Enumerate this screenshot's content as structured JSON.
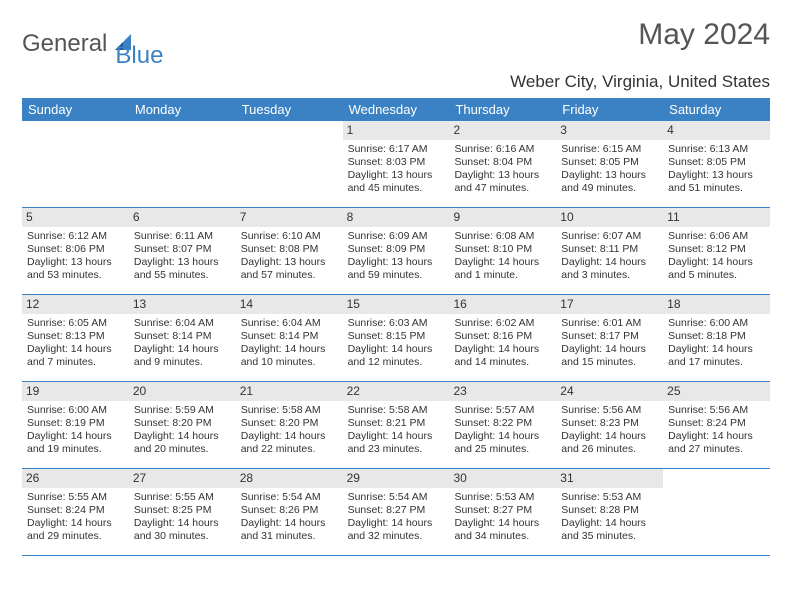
{
  "logo": {
    "text1": "General",
    "text2": "Blue"
  },
  "title": "May 2024",
  "location": "Weber City, Virginia, United States",
  "colors": {
    "header_bg": "#3b82c4",
    "header_text": "#ffffff",
    "daynum_bg": "#e8e8e8",
    "border": "#3b82c4",
    "logo_gray": "#555555",
    "logo_blue": "#3b82c4"
  },
  "day_names": [
    "Sunday",
    "Monday",
    "Tuesday",
    "Wednesday",
    "Thursday",
    "Friday",
    "Saturday"
  ],
  "weeks": [
    [
      {
        "empty": true
      },
      {
        "empty": true
      },
      {
        "empty": true
      },
      {
        "num": "1",
        "sunrise": "6:17 AM",
        "sunset": "8:03 PM",
        "daylight": "13 hours and 45 minutes."
      },
      {
        "num": "2",
        "sunrise": "6:16 AM",
        "sunset": "8:04 PM",
        "daylight": "13 hours and 47 minutes."
      },
      {
        "num": "3",
        "sunrise": "6:15 AM",
        "sunset": "8:05 PM",
        "daylight": "13 hours and 49 minutes."
      },
      {
        "num": "4",
        "sunrise": "6:13 AM",
        "sunset": "8:05 PM",
        "daylight": "13 hours and 51 minutes."
      }
    ],
    [
      {
        "num": "5",
        "sunrise": "6:12 AM",
        "sunset": "8:06 PM",
        "daylight": "13 hours and 53 minutes."
      },
      {
        "num": "6",
        "sunrise": "6:11 AM",
        "sunset": "8:07 PM",
        "daylight": "13 hours and 55 minutes."
      },
      {
        "num": "7",
        "sunrise": "6:10 AM",
        "sunset": "8:08 PM",
        "daylight": "13 hours and 57 minutes."
      },
      {
        "num": "8",
        "sunrise": "6:09 AM",
        "sunset": "8:09 PM",
        "daylight": "13 hours and 59 minutes."
      },
      {
        "num": "9",
        "sunrise": "6:08 AM",
        "sunset": "8:10 PM",
        "daylight": "14 hours and 1 minute."
      },
      {
        "num": "10",
        "sunrise": "6:07 AM",
        "sunset": "8:11 PM",
        "daylight": "14 hours and 3 minutes."
      },
      {
        "num": "11",
        "sunrise": "6:06 AM",
        "sunset": "8:12 PM",
        "daylight": "14 hours and 5 minutes."
      }
    ],
    [
      {
        "num": "12",
        "sunrise": "6:05 AM",
        "sunset": "8:13 PM",
        "daylight": "14 hours and 7 minutes."
      },
      {
        "num": "13",
        "sunrise": "6:04 AM",
        "sunset": "8:14 PM",
        "daylight": "14 hours and 9 minutes."
      },
      {
        "num": "14",
        "sunrise": "6:04 AM",
        "sunset": "8:14 PM",
        "daylight": "14 hours and 10 minutes."
      },
      {
        "num": "15",
        "sunrise": "6:03 AM",
        "sunset": "8:15 PM",
        "daylight": "14 hours and 12 minutes."
      },
      {
        "num": "16",
        "sunrise": "6:02 AM",
        "sunset": "8:16 PM",
        "daylight": "14 hours and 14 minutes."
      },
      {
        "num": "17",
        "sunrise": "6:01 AM",
        "sunset": "8:17 PM",
        "daylight": "14 hours and 15 minutes."
      },
      {
        "num": "18",
        "sunrise": "6:00 AM",
        "sunset": "8:18 PM",
        "daylight": "14 hours and 17 minutes."
      }
    ],
    [
      {
        "num": "19",
        "sunrise": "6:00 AM",
        "sunset": "8:19 PM",
        "daylight": "14 hours and 19 minutes."
      },
      {
        "num": "20",
        "sunrise": "5:59 AM",
        "sunset": "8:20 PM",
        "daylight": "14 hours and 20 minutes."
      },
      {
        "num": "21",
        "sunrise": "5:58 AM",
        "sunset": "8:20 PM",
        "daylight": "14 hours and 22 minutes."
      },
      {
        "num": "22",
        "sunrise": "5:58 AM",
        "sunset": "8:21 PM",
        "daylight": "14 hours and 23 minutes."
      },
      {
        "num": "23",
        "sunrise": "5:57 AM",
        "sunset": "8:22 PM",
        "daylight": "14 hours and 25 minutes."
      },
      {
        "num": "24",
        "sunrise": "5:56 AM",
        "sunset": "8:23 PM",
        "daylight": "14 hours and 26 minutes."
      },
      {
        "num": "25",
        "sunrise": "5:56 AM",
        "sunset": "8:24 PM",
        "daylight": "14 hours and 27 minutes."
      }
    ],
    [
      {
        "num": "26",
        "sunrise": "5:55 AM",
        "sunset": "8:24 PM",
        "daylight": "14 hours and 29 minutes."
      },
      {
        "num": "27",
        "sunrise": "5:55 AM",
        "sunset": "8:25 PM",
        "daylight": "14 hours and 30 minutes."
      },
      {
        "num": "28",
        "sunrise": "5:54 AM",
        "sunset": "8:26 PM",
        "daylight": "14 hours and 31 minutes."
      },
      {
        "num": "29",
        "sunrise": "5:54 AM",
        "sunset": "8:27 PM",
        "daylight": "14 hours and 32 minutes."
      },
      {
        "num": "30",
        "sunrise": "5:53 AM",
        "sunset": "8:27 PM",
        "daylight": "14 hours and 34 minutes."
      },
      {
        "num": "31",
        "sunrise": "5:53 AM",
        "sunset": "8:28 PM",
        "daylight": "14 hours and 35 minutes."
      },
      {
        "empty": true
      }
    ]
  ],
  "labels": {
    "sunrise": "Sunrise:",
    "sunset": "Sunset:",
    "daylight": "Daylight:"
  }
}
